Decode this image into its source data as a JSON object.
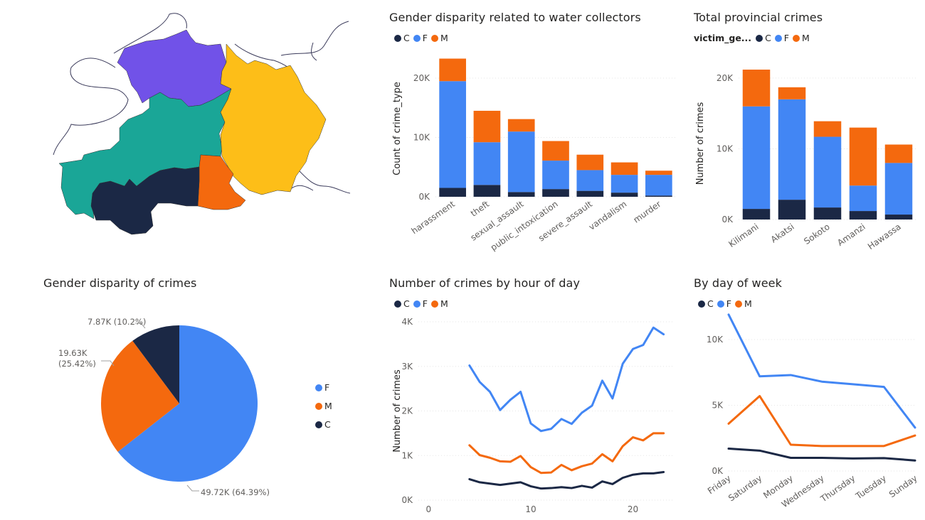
{
  "colors": {
    "C": "#1b2845",
    "F": "#4286f4",
    "M": "#f4690e"
  },
  "map": {
    "regions": [
      {
        "name": "purple-region",
        "color": "#7152e8"
      },
      {
        "name": "teal-region",
        "color": "#1aa697"
      },
      {
        "name": "yellow-region",
        "color": "#fdbe18"
      },
      {
        "name": "orange-region",
        "color": "#f4690e"
      },
      {
        "name": "navy-region",
        "color": "#1b2845"
      }
    ]
  },
  "chart_data": [
    {
      "id": "water",
      "type": "bar",
      "stacked": true,
      "title": "Gender disparity related to water collectors",
      "legend": {
        "title": "",
        "items": [
          "C",
          "F",
          "M"
        ],
        "placement": "top-left"
      },
      "ylabel": "Count of crime_type",
      "xlabel": "",
      "ylim": [
        0,
        23000
      ],
      "yticks": [
        {
          "v": 0,
          "label": "0K"
        },
        {
          "v": 10000,
          "label": "10K"
        },
        {
          "v": 20000,
          "label": "20K"
        }
      ],
      "categories": [
        "harassment",
        "theft",
        "sexual_assault",
        "public_intoxication",
        "severe_assault",
        "vandalism",
        "murder"
      ],
      "series": [
        {
          "name": "C",
          "values": [
            1500,
            2000,
            800,
            1300,
            1000,
            700,
            200
          ]
        },
        {
          "name": "F",
          "values": [
            18000,
            7200,
            10200,
            4800,
            3500,
            3000,
            3500
          ]
        },
        {
          "name": "M",
          "values": [
            3800,
            5300,
            2100,
            3300,
            2600,
            2100,
            700
          ]
        }
      ]
    },
    {
      "id": "prov",
      "type": "bar",
      "stacked": true,
      "title": "Total provincial crimes",
      "legend": {
        "title": "victim_ge...",
        "items": [
          "C",
          "F",
          "M"
        ],
        "placement": "top-left"
      },
      "ylabel": "Number of crimes",
      "xlabel": "",
      "ylim": [
        0,
        21500
      ],
      "yticks": [
        {
          "v": 0,
          "label": "0K"
        },
        {
          "v": 10000,
          "label": "10K"
        },
        {
          "v": 20000,
          "label": "20K"
        }
      ],
      "categories": [
        "Kilimani",
        "Akatsi",
        "Sokoto",
        "Amanzi",
        "Hawassa"
      ],
      "series": [
        {
          "name": "C",
          "values": [
            1500,
            2800,
            1700,
            1200,
            700
          ]
        },
        {
          "name": "F",
          "values": [
            14500,
            14200,
            10000,
            3600,
            7300
          ]
        },
        {
          "name": "M",
          "values": [
            5200,
            1700,
            2200,
            8200,
            2600
          ]
        }
      ]
    },
    {
      "id": "pie",
      "type": "pie",
      "title": "Gender disparity of crimes",
      "legend": {
        "items": [
          "F",
          "M",
          "C"
        ],
        "placement": "right"
      },
      "slices": [
        {
          "name": "F",
          "value": 49720,
          "label": "49.72K (64.39%)"
        },
        {
          "name": "M",
          "value": 19630,
          "label_lines": [
            "19.63K",
            "(25.42%)"
          ]
        },
        {
          "name": "C",
          "value": 7870,
          "label": "7.87K (10.2%)"
        }
      ]
    },
    {
      "id": "hour",
      "type": "line",
      "title": "Number of crimes by hour of day",
      "legend": {
        "title": "",
        "items": [
          "C",
          "F",
          "M"
        ],
        "placement": "top-left"
      },
      "ylabel": "Number of crimes",
      "xlabel": "",
      "xlim": [
        -1,
        24
      ],
      "ylim": [
        0,
        4000
      ],
      "xticks": [
        {
          "v": 0,
          "label": "0"
        },
        {
          "v": 10,
          "label": "10"
        },
        {
          "v": 20,
          "label": "20"
        }
      ],
      "yticks": [
        {
          "v": 0,
          "label": "0K"
        },
        {
          "v": 1000,
          "label": "1K"
        },
        {
          "v": 2000,
          "label": "2K"
        },
        {
          "v": 3000,
          "label": "3K"
        },
        {
          "v": 4000,
          "label": "4K"
        }
      ],
      "x": [
        4,
        5,
        6,
        7,
        8,
        9,
        10,
        11,
        12,
        13,
        14,
        15,
        16,
        17,
        18,
        19,
        20,
        21,
        22,
        23
      ],
      "series": [
        {
          "name": "F",
          "values": [
            3020,
            2650,
            2430,
            2020,
            2250,
            2430,
            1720,
            1550,
            1600,
            1820,
            1710,
            1960,
            2120,
            2680,
            2280,
            3060,
            3390,
            3480,
            3870,
            3720
          ]
        },
        {
          "name": "M",
          "values": [
            1230,
            1010,
            950,
            870,
            860,
            990,
            740,
            610,
            620,
            790,
            670,
            760,
            820,
            1030,
            870,
            1210,
            1410,
            1340,
            1500,
            1500
          ]
        },
        {
          "name": "C",
          "values": [
            470,
            400,
            370,
            340,
            370,
            400,
            310,
            260,
            270,
            290,
            270,
            320,
            280,
            420,
            360,
            500,
            570,
            600,
            600,
            630
          ]
        }
      ]
    },
    {
      "id": "dow",
      "type": "line",
      "title": "By day of week",
      "legend": {
        "title": "",
        "items": [
          "C",
          "F",
          "M"
        ],
        "placement": "top-left"
      },
      "ylabel": "",
      "xlabel": "",
      "ylim": [
        0,
        12000
      ],
      "yticks": [
        {
          "v": 0,
          "label": "0K"
        },
        {
          "v": 5000,
          "label": "5K"
        },
        {
          "v": 10000,
          "label": "10K"
        }
      ],
      "categories": [
        "Friday",
        "Saturday",
        "Monday",
        "Wednesday",
        "Thursday",
        "Tuesday",
        "Sunday"
      ],
      "series": [
        {
          "name": "F",
          "values": [
            11900,
            7200,
            7300,
            6800,
            6600,
            6400,
            3300
          ]
        },
        {
          "name": "M",
          "values": [
            3600,
            5700,
            2000,
            1900,
            1900,
            1900,
            2700
          ]
        },
        {
          "name": "C",
          "values": [
            1700,
            1550,
            1000,
            1000,
            950,
            980,
            800
          ]
        }
      ]
    }
  ]
}
